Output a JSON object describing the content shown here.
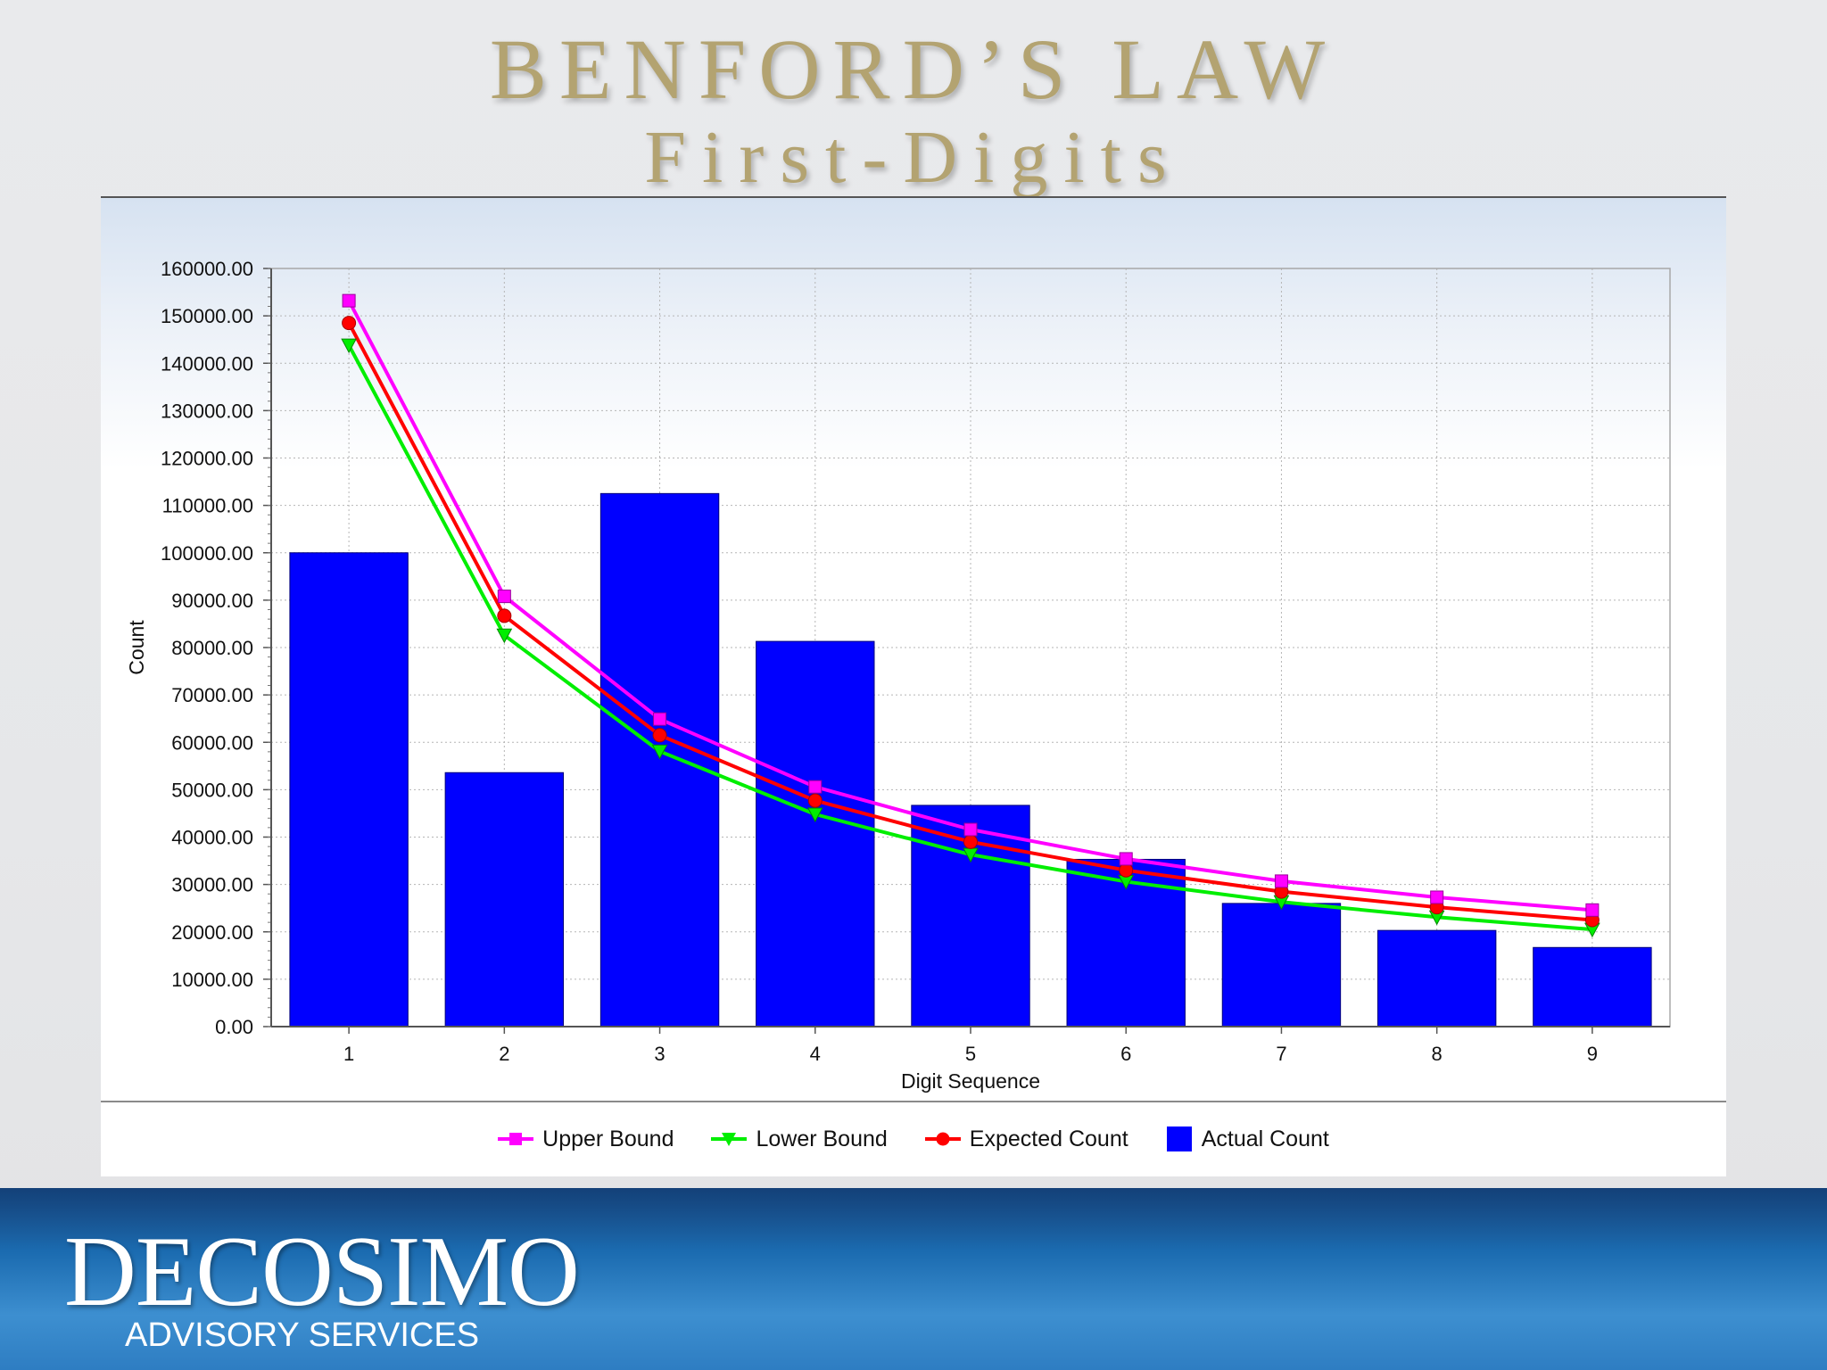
{
  "slide": {
    "title": "BENFORD’S LAW",
    "subtitle": "First-Digits"
  },
  "footer": {
    "brand": "DECOSIMO",
    "tagline": "ADVISORY SERVICES"
  },
  "chart_data": {
    "type": "bar",
    "xlabel": "Digit Sequence",
    "ylabel": "Count",
    "categories": [
      "1",
      "2",
      "3",
      "4",
      "5",
      "6",
      "7",
      "8",
      "9"
    ],
    "ylim": [
      0,
      160000
    ],
    "ytick_step": 10000,
    "yticks": [
      "0.00",
      "10000.00",
      "20000.00",
      "30000.00",
      "40000.00",
      "50000.00",
      "60000.00",
      "70000.00",
      "80000.00",
      "90000.00",
      "100000.00",
      "110000.00",
      "120000.00",
      "130000.00",
      "140000.00",
      "150000.00",
      "160000.00"
    ],
    "grid": true,
    "legend_position": "bottom",
    "series": [
      {
        "name": "Upper Bound",
        "kind": "line",
        "color": "#ff00ff",
        "marker": "square",
        "values": [
          153200,
          90800,
          64900,
          50600,
          41600,
          35400,
          30700,
          27300,
          24600
        ]
      },
      {
        "name": "Lower Bound",
        "kind": "line",
        "color": "#00ee00",
        "marker": "triangle-down",
        "values": [
          143800,
          82600,
          58100,
          44800,
          36300,
          30600,
          26300,
          23100,
          20500
        ]
      },
      {
        "name": "Expected Count",
        "kind": "line",
        "color": "#ff0000",
        "marker": "circle",
        "values": [
          148500,
          86700,
          61500,
          47700,
          39000,
          33000,
          28500,
          25200,
          22500
        ]
      },
      {
        "name": "Actual Count",
        "kind": "bar",
        "color": "#0000ff",
        "values": [
          100000,
          53600,
          112500,
          81300,
          46700,
          35300,
          26000,
          20300,
          16700
        ]
      }
    ]
  }
}
